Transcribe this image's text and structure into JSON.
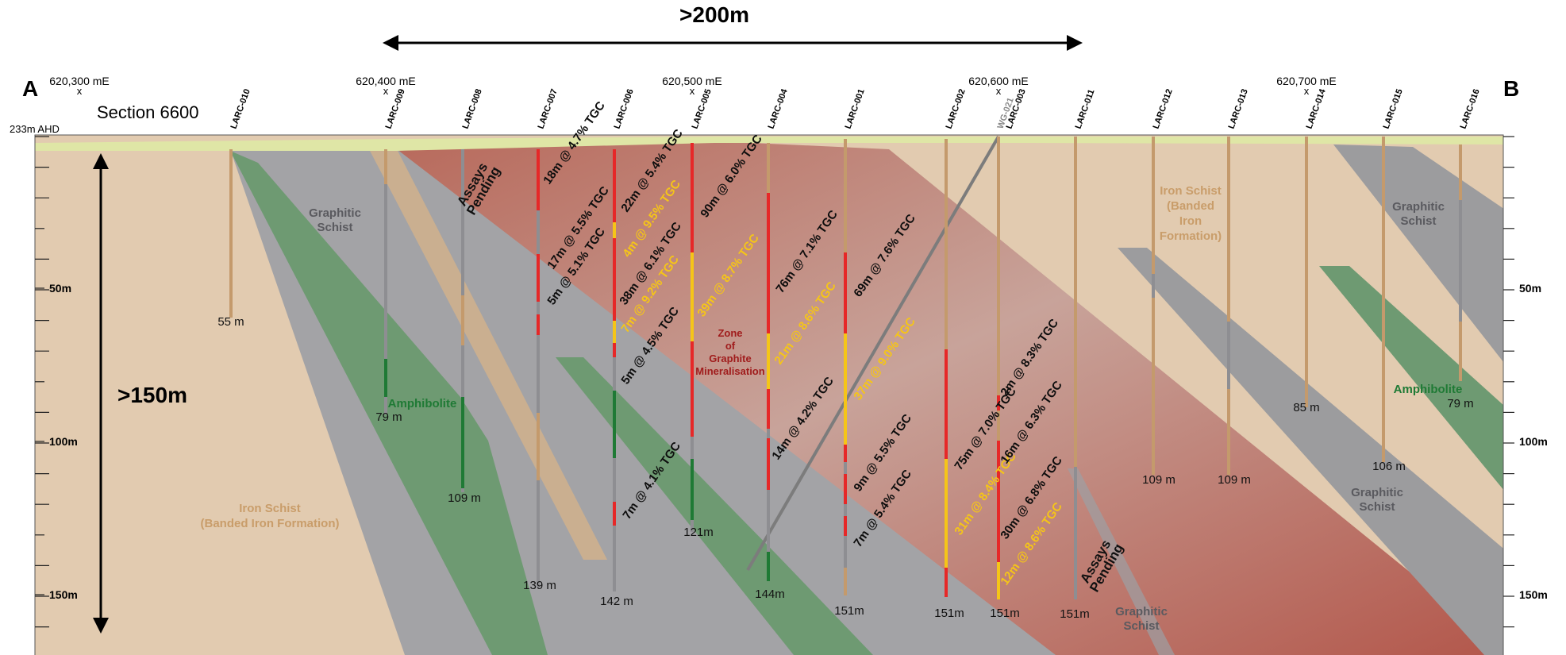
{
  "header": {
    "width_label": ">200m",
    "depth_label": ">150m",
    "end_left": "A",
    "end_right": "B",
    "section_title": "Section 6600",
    "rl_label": "233m AHD"
  },
  "eastings": [
    {
      "label": "620,300 mE",
      "mark": "x"
    },
    {
      "label": "620,400 mE",
      "mark": "x"
    },
    {
      "label": "620,500 mE",
      "mark": "x"
    },
    {
      "label": "620,600 mE",
      "mark": "x"
    },
    {
      "label": "620,700 mE",
      "mark": "x"
    }
  ],
  "depth_ticks": [
    "50m",
    "100m",
    "150m"
  ],
  "holes": [
    {
      "id": "LARC-010",
      "depth": "55 m"
    },
    {
      "id": "LARC-009",
      "depth": "79 m"
    },
    {
      "id": "LARC-008",
      "depth": "109 m"
    },
    {
      "id": "LARC-007",
      "depth": "139 m"
    },
    {
      "id": "LARC-006",
      "depth": "142 m"
    },
    {
      "id": "LARC-005",
      "depth": "121m"
    },
    {
      "id": "LARC-004",
      "depth": "144m"
    },
    {
      "id": "LARC-001",
      "depth": "151m"
    },
    {
      "id": "LARC-002",
      "depth": "151m"
    },
    {
      "id": "WG-021"
    },
    {
      "id": "LARC-003",
      "depth": "151m"
    },
    {
      "id": "LARC-011",
      "depth": "151m"
    },
    {
      "id": "LARC-012",
      "depth": "109 m"
    },
    {
      "id": "LARC-013",
      "depth": "109 m"
    },
    {
      "id": "LARC-014",
      "depth": "85 m"
    },
    {
      "id": "LARC-015",
      "depth": "106 m"
    },
    {
      "id": "LARC-016",
      "depth": "79 m"
    }
  ],
  "intercepts": [
    "18m @ 4.7% TGC",
    "17m @ 5.5% TGC",
    "5m @ 5.1% TGC",
    "22m @ 5.4% TGC",
    "4m @ 9.5% TGC",
    "38m @ 6.1% TGC",
    "7m @ 9.2% TGC",
    "5m @ 4.5% TGC",
    "7m @ 4.1% TGC",
    "90m @ 6.0% TGC",
    "39m @ 8.7% TGC",
    "76m @ 7.1% TGC",
    "21m @ 8.6% TGC",
    "14m @ 4.2% TGC",
    "69m @ 7.6% TGC",
    "37m @ 9.0% TGC",
    "9m @ 5.5% TGC",
    "7m @ 5.4% TGC",
    "75m @ 7.0% TGC",
    "31m @ 8.4% TGC",
    "2m @ 8.3% TGC",
    "16m @ 6.3% TGC",
    "30m @ 6.8% TGC",
    "12m @ 8.6% TGC"
  ],
  "units": {
    "graphitic_schist": "Graphitic\nSchist",
    "iron_schist_left": "Iron Schist\n(Banded Iron Formation)",
    "iron_schist_right": "Iron Schist\n(Banded\nIron\nFormation)",
    "amphibolite": "Amphibolite",
    "zone": "Zone\nof\nGraphite\nMineralisation",
    "assays_pending": "Assays\nPending"
  },
  "colors": {
    "iron_schist": "#e2cbb0",
    "graphitic_schist": "#a3a3a6",
    "amphibolite": "#6e9a72",
    "mineralisation": "#b4645a",
    "surface": "#dfe6a6",
    "grade_high": "#f5c518",
    "grade_mod": "#e62828",
    "hole_barren": "#c49a6c"
  }
}
